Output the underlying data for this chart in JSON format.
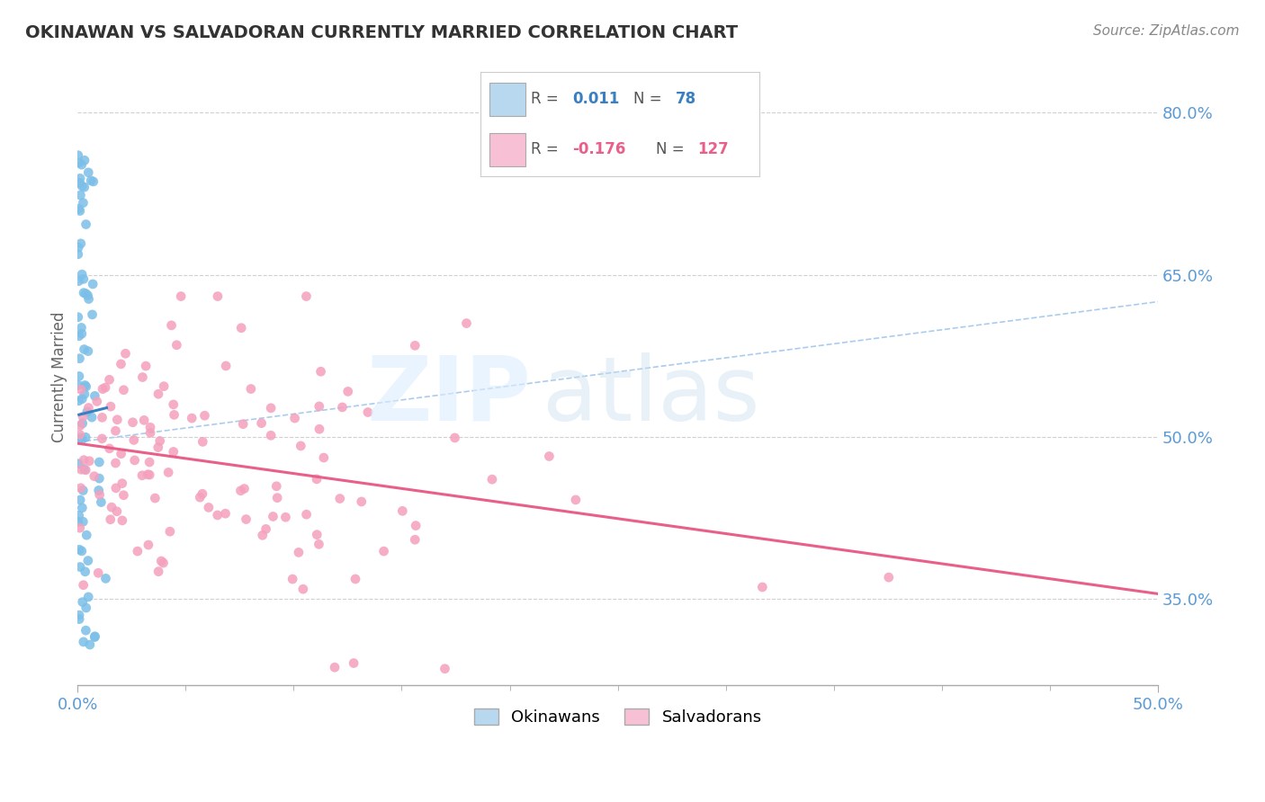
{
  "title": "OKINAWAN VS SALVADORAN CURRENTLY MARRIED CORRELATION CHART",
  "source": "Source: ZipAtlas.com",
  "ylabel": "Currently Married",
  "y_ticks": [
    0.35,
    0.5,
    0.65,
    0.8
  ],
  "y_tick_labels": [
    "35.0%",
    "50.0%",
    "65.0%",
    "80.0%"
  ],
  "x_min": 0.0,
  "x_max": 0.5,
  "y_min": 0.27,
  "y_max": 0.84,
  "okinawan_R": 0.011,
  "okinawan_N": 78,
  "salvadoran_R": -0.176,
  "salvadoran_N": 127,
  "okinawan_color": "#7bbfe8",
  "salvadoran_color": "#f4a0bc",
  "okinawan_line_color": "#3a7fc1",
  "salvadoran_line_color": "#e8608a",
  "dashed_line_color": "#aaccee",
  "background_color": "#ffffff",
  "legend_box_color_okinawan": "#b8d8f0",
  "legend_box_color_salvadoran": "#f8c0d4",
  "tick_color": "#5b9bd5",
  "title_color": "#333333",
  "source_color": "#888888",
  "ylabel_color": "#666666"
}
